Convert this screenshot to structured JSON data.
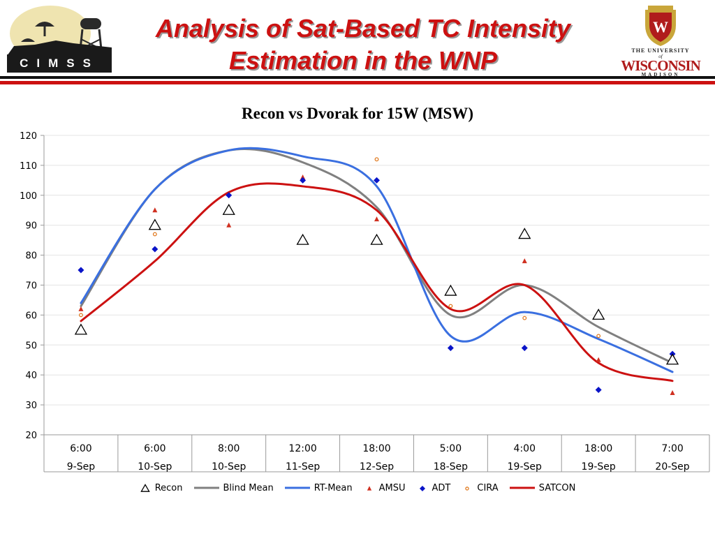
{
  "header": {
    "title_line1": "Analysis of Sat-Based TC Intensity",
    "title_line2": "Estimation in the WNP",
    "left_logo_text": "CIMSS",
    "right_logo_small": "THE UNIVERSITY",
    "right_logo_of": "of",
    "right_logo_big": "WISCONSIN",
    "right_logo_city": "MADISON",
    "right_logo_shield_letter": "W"
  },
  "colors": {
    "title": "#cc1111",
    "rule_dark": "#111111",
    "rule_red": "#cc1111",
    "recon": "#000000",
    "blind_mean": "#808080",
    "rt_mean": "#3a6fe0",
    "amsu": "#d03020",
    "adt": "#0a14c8",
    "cira": "#e07a20",
    "satcon": "#cc1111"
  },
  "chart_data": {
    "type": "line",
    "title": "Recon vs Dvorak for 15W (MSW)",
    "xlabel": "",
    "ylabel": "",
    "ylim": [
      20,
      120
    ],
    "ytick_step": 10,
    "grid": true,
    "legend_position": "bottom",
    "categories": [
      {
        "time": "6:00",
        "date": "9-Sep"
      },
      {
        "time": "6:00",
        "date": "10-Sep"
      },
      {
        "time": "8:00",
        "date": "10-Sep"
      },
      {
        "time": "12:00",
        "date": "11-Sep"
      },
      {
        "time": "18:00",
        "date": "12-Sep"
      },
      {
        "time": "5:00",
        "date": "18-Sep"
      },
      {
        "time": "4:00",
        "date": "19-Sep"
      },
      {
        "time": "18:00",
        "date": "19-Sep"
      },
      {
        "time": "7:00",
        "date": "20-Sep"
      }
    ],
    "series": [
      {
        "name": "Recon",
        "kind": "marker",
        "marker": "triangle-open",
        "values": [
          55,
          90,
          95,
          85,
          85,
          68,
          87,
          60,
          45
        ]
      },
      {
        "name": "Blind Mean",
        "kind": "smooth-line",
        "values": [
          63,
          102,
          115,
          111,
          96,
          60,
          70,
          56,
          44
        ]
      },
      {
        "name": "RT-Mean",
        "kind": "smooth-line",
        "values": [
          64,
          102,
          115,
          113,
          103,
          53,
          61,
          52,
          41
        ]
      },
      {
        "name": "AMSU",
        "kind": "marker",
        "marker": "triangle-filled",
        "values": [
          62,
          95,
          90,
          106,
          92,
          68,
          78,
          45,
          34
        ]
      },
      {
        "name": "ADT",
        "kind": "marker",
        "marker": "diamond",
        "values": [
          75,
          82,
          100,
          105,
          105,
          49,
          49,
          35,
          47
        ]
      },
      {
        "name": "CIRA",
        "kind": "marker",
        "marker": "circle-open",
        "values": [
          60,
          87,
          100,
          105,
          112,
          63,
          59,
          53,
          46
        ]
      },
      {
        "name": "SATCON",
        "kind": "smooth-line",
        "values": [
          58,
          78,
          101,
          103,
          95,
          62,
          70,
          44,
          38
        ]
      }
    ]
  }
}
